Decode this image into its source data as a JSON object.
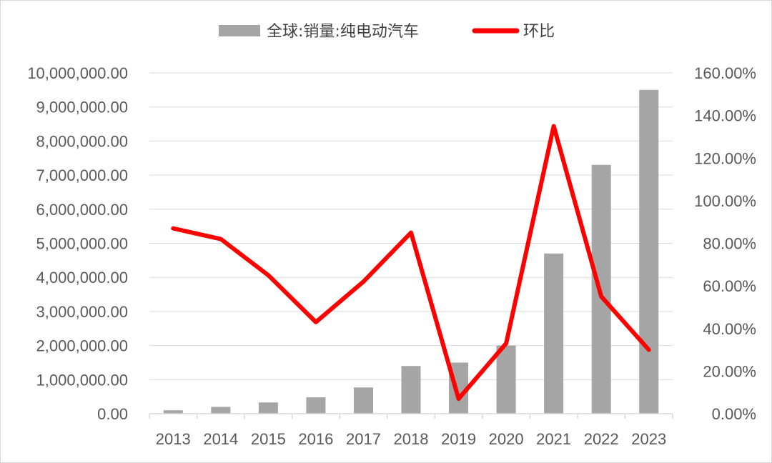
{
  "chart_data": {
    "type": "bar",
    "categories": [
      "2013",
      "2014",
      "2015",
      "2016",
      "2017",
      "2018",
      "2019",
      "2020",
      "2021",
      "2022",
      "2023"
    ],
    "series": [
      {
        "name": "全球:销量:纯电动汽车",
        "type": "bar",
        "axis": "left",
        "color": "#a5a5a5",
        "values": [
          100000,
          200000,
          330000,
          480000,
          770000,
          1400000,
          1500000,
          2000000,
          4700000,
          7300000,
          9500000
        ]
      },
      {
        "name": "环比",
        "type": "line",
        "axis": "right",
        "color": "#ff0000",
        "values": [
          0.87,
          0.82,
          0.65,
          0.43,
          0.62,
          0.85,
          0.07,
          0.33,
          1.35,
          0.55,
          0.3
        ]
      }
    ],
    "y_left": {
      "lim": [
        0,
        10000000
      ],
      "ticks": [
        0,
        1000000,
        2000000,
        3000000,
        4000000,
        5000000,
        6000000,
        7000000,
        8000000,
        9000000,
        10000000
      ],
      "tick_labels": [
        "0.00",
        "1,000,000.00",
        "2,000,000.00",
        "3,000,000.00",
        "4,000,000.00",
        "5,000,000.00",
        "6,000,000.00",
        "7,000,000.00",
        "8,000,000.00",
        "9,000,000.00",
        "10,000,000.00"
      ]
    },
    "y_right": {
      "lim": [
        0,
        1.6
      ],
      "ticks": [
        0,
        0.2,
        0.4,
        0.6,
        0.8,
        1.0,
        1.2,
        1.4,
        1.6
      ],
      "tick_labels": [
        "0.00%",
        "20.00%",
        "40.00%",
        "60.00%",
        "80.00%",
        "100.00%",
        "120.00%",
        "140.00%",
        "160.00%"
      ]
    },
    "legend_position": "top",
    "grid": true
  }
}
